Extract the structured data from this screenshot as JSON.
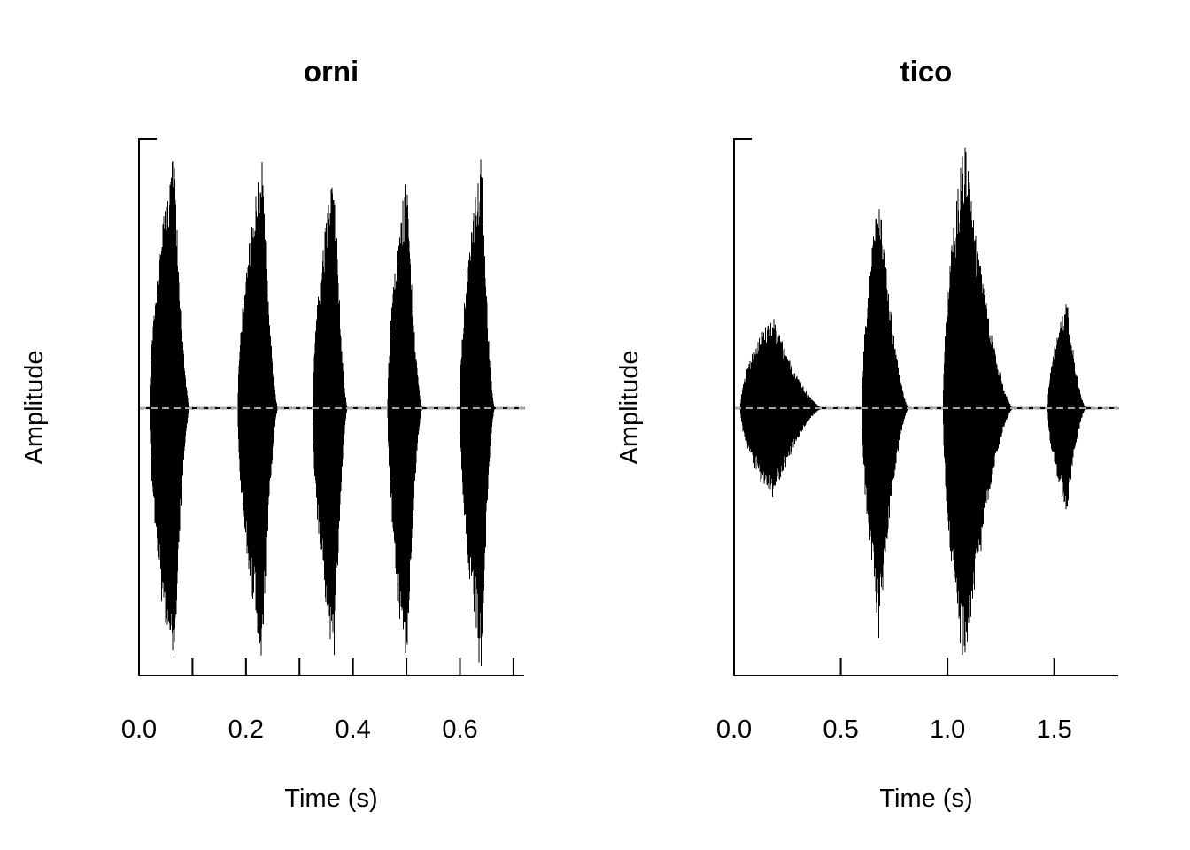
{
  "chart_data": [
    {
      "type": "waveform",
      "title": "orni",
      "xlabel": "Time (s)",
      "ylabel": "Amplitude",
      "xlim": [
        0.0,
        0.72
      ],
      "ylim": [
        -1.0,
        1.0
      ],
      "xticks": [
        0.0,
        0.2,
        0.4,
        0.6
      ],
      "xtick_labels": [
        "0.0",
        "0.2",
        "0.4",
        "0.6"
      ],
      "minor_xticks": [
        0.1,
        0.3,
        0.5,
        0.7
      ],
      "zero_line": "dashed",
      "waveform_color": "#000000",
      "zero_line_color": "#dddddd",
      "bursts": [
        {
          "start": 0.02,
          "end": 0.095,
          "peak_time": 0.065,
          "peak_pos": 0.96,
          "peak_neg": 1.0
        },
        {
          "start": 0.185,
          "end": 0.26,
          "peak_time": 0.23,
          "peak_pos": 0.93,
          "peak_neg": 0.95
        },
        {
          "start": 0.325,
          "end": 0.39,
          "peak_time": 0.365,
          "peak_pos": 0.9,
          "peak_neg": 0.96
        },
        {
          "start": 0.465,
          "end": 0.53,
          "peak_time": 0.5,
          "peak_pos": 0.87,
          "peak_neg": 0.96
        },
        {
          "start": 0.6,
          "end": 0.665,
          "peak_time": 0.64,
          "peak_pos": 0.94,
          "peak_neg": 0.97
        }
      ]
    },
    {
      "type": "waveform",
      "title": "tico",
      "xlabel": "Time (s)",
      "ylabel": "Amplitude",
      "xlim": [
        0.0,
        1.8
      ],
      "ylim": [
        -1.0,
        1.0
      ],
      "xticks": [
        0.0,
        0.5,
        1.0,
        1.5
      ],
      "xtick_labels": [
        "0.0",
        "0.5",
        "1.0",
        "1.5"
      ],
      "minor_xticks": [],
      "zero_line": "dashed",
      "waveform_color": "#000000",
      "zero_line_color": "#dddddd",
      "bursts": [
        {
          "start": 0.03,
          "end": 0.42,
          "peak_time": 0.18,
          "peak_pos": 0.35,
          "peak_neg": 0.34
        },
        {
          "start": 0.6,
          "end": 0.82,
          "peak_time": 0.68,
          "peak_pos": 0.8,
          "peak_neg": 0.81
        },
        {
          "start": 0.98,
          "end": 1.31,
          "peak_time": 1.08,
          "peak_pos": 1.0,
          "peak_neg": 0.98
        },
        {
          "start": 1.47,
          "end": 1.65,
          "peak_time": 1.56,
          "peak_pos": 0.4,
          "peak_neg": 0.39
        }
      ]
    }
  ]
}
